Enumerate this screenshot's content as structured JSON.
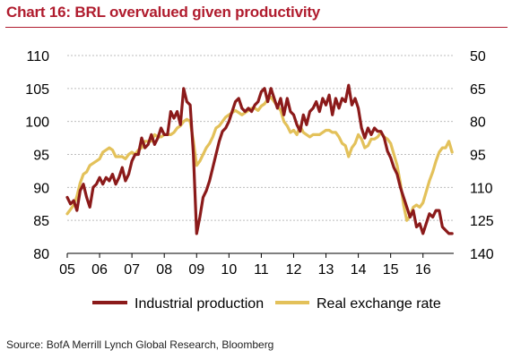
{
  "header": {
    "title": "Chart 16: BRL overvalued given productivity"
  },
  "footer": {
    "source": "Source: BofA Merrill Lynch Global Research, Bloomberg"
  },
  "colors": {
    "title": "#b01c2e",
    "industrial": "#8b1a1a",
    "reer": "#e3c15a",
    "grid": "#bdbdbd"
  },
  "chart_data": {
    "type": "line",
    "title": "Chart 16: BRL overvalued given productivity",
    "xlabel": "",
    "ylabel_left": "",
    "ylabel_right": "",
    "x_ticks": [
      "05",
      "06",
      "07",
      "08",
      "09",
      "10",
      "11",
      "12",
      "13",
      "14",
      "15",
      "16"
    ],
    "x_tick_values": [
      2005,
      2006,
      2007,
      2008,
      2009,
      2010,
      2011,
      2012,
      2013,
      2014,
      2015,
      2016
    ],
    "xlim": [
      2005,
      2016.95
    ],
    "ylim_left": [
      80,
      110
    ],
    "yticks_left": [
      80,
      85,
      90,
      95,
      100,
      105,
      110
    ],
    "ylim_right": [
      140,
      50
    ],
    "yticks_right": [
      50,
      65,
      80,
      95,
      110,
      125,
      140
    ],
    "right_axis_inverted": true,
    "grid": "horizontal dashed",
    "legend_position": "bottom",
    "series": [
      {
        "name": "Industrial production",
        "axis": "left",
        "color": "#8b1a1a",
        "x": [
          2005.0,
          2005.1,
          2005.2,
          2005.3,
          2005.4,
          2005.5,
          2005.6,
          2005.7,
          2005.8,
          2005.9,
          2006.0,
          2006.1,
          2006.2,
          2006.3,
          2006.4,
          2006.5,
          2006.6,
          2006.7,
          2006.8,
          2006.9,
          2007.0,
          2007.1,
          2007.2,
          2007.3,
          2007.4,
          2007.5,
          2007.6,
          2007.7,
          2007.8,
          2007.9,
          2008.0,
          2008.1,
          2008.2,
          2008.3,
          2008.4,
          2008.5,
          2008.6,
          2008.7,
          2008.8,
          2008.9,
          2009.0,
          2009.1,
          2009.2,
          2009.3,
          2009.4,
          2009.5,
          2009.6,
          2009.7,
          2009.8,
          2009.9,
          2010.0,
          2010.1,
          2010.2,
          2010.3,
          2010.4,
          2010.5,
          2010.6,
          2010.7,
          2010.8,
          2010.9,
          2011.0,
          2011.1,
          2011.2,
          2011.3,
          2011.4,
          2011.5,
          2011.6,
          2011.7,
          2011.8,
          2011.9,
          2012.0,
          2012.1,
          2012.2,
          2012.3,
          2012.4,
          2012.5,
          2012.6,
          2012.7,
          2012.8,
          2012.9,
          2013.0,
          2013.1,
          2013.2,
          2013.3,
          2013.4,
          2013.5,
          2013.6,
          2013.7,
          2013.8,
          2013.9,
          2014.0,
          2014.1,
          2014.2,
          2014.3,
          2014.4,
          2014.5,
          2014.6,
          2014.7,
          2014.8,
          2014.9,
          2015.0,
          2015.1,
          2015.2,
          2015.3,
          2015.4,
          2015.5,
          2015.6,
          2015.7,
          2015.8,
          2015.9,
          2016.0,
          2016.1,
          2016.2,
          2016.3,
          2016.4,
          2016.5,
          2016.6,
          2016.7,
          2016.8,
          2016.9
        ],
        "values": [
          88.5,
          87.5,
          88.0,
          86.5,
          89.5,
          90.5,
          88.5,
          87.0,
          90.0,
          90.5,
          91.5,
          90.5,
          91.5,
          91.0,
          92.0,
          90.5,
          91.5,
          93.0,
          91.0,
          92.0,
          94.0,
          95.0,
          95.0,
          97.5,
          96.0,
          96.5,
          98.0,
          96.5,
          97.5,
          99.0,
          98.0,
          98.0,
          101.5,
          100.5,
          101.5,
          99.5,
          105.0,
          103.0,
          102.5,
          95.0,
          83.0,
          85.5,
          88.5,
          89.5,
          91.0,
          93.0,
          95.0,
          97.0,
          98.5,
          99.0,
          100.0,
          101.5,
          103.0,
          103.5,
          102.0,
          101.5,
          102.0,
          101.5,
          102.5,
          103.0,
          104.5,
          105.0,
          103.0,
          105.0,
          103.5,
          102.0,
          103.5,
          101.0,
          103.5,
          101.5,
          101.0,
          99.5,
          98.5,
          101.0,
          99.5,
          101.5,
          102.0,
          103.0,
          101.5,
          103.5,
          102.5,
          104.0,
          101.0,
          103.5,
          102.0,
          103.5,
          103.0,
          105.5,
          102.5,
          103.5,
          102.0,
          99.0,
          97.5,
          99.0,
          98.0,
          99.0,
          98.5,
          98.5,
          97.5,
          95.5,
          94.5,
          93.0,
          92.0,
          90.0,
          88.5,
          87.0,
          85.5,
          86.5,
          84.0,
          84.5,
          83.0,
          84.5,
          86.0,
          85.5,
          86.5,
          86.5,
          84.0,
          83.5,
          83.0,
          83.0
        ]
      },
      {
        "name": "Real exchange rate",
        "axis": "right",
        "color": "#e3c15a",
        "x": [
          2005.0,
          2005.1,
          2005.2,
          2005.3,
          2005.4,
          2005.5,
          2005.6,
          2005.7,
          2005.8,
          2005.9,
          2006.0,
          2006.1,
          2006.2,
          2006.3,
          2006.4,
          2006.5,
          2006.6,
          2006.7,
          2006.8,
          2006.9,
          2007.0,
          2007.1,
          2007.2,
          2007.3,
          2007.4,
          2007.5,
          2007.6,
          2007.7,
          2007.8,
          2007.9,
          2008.0,
          2008.1,
          2008.2,
          2008.3,
          2008.4,
          2008.5,
          2008.6,
          2008.7,
          2008.8,
          2008.9,
          2009.0,
          2009.1,
          2009.2,
          2009.3,
          2009.4,
          2009.5,
          2009.6,
          2009.7,
          2009.8,
          2009.9,
          2010.0,
          2010.1,
          2010.2,
          2010.3,
          2010.4,
          2010.5,
          2010.6,
          2010.7,
          2010.8,
          2010.9,
          2011.0,
          2011.1,
          2011.2,
          2011.3,
          2011.4,
          2011.5,
          2011.6,
          2011.7,
          2011.8,
          2011.9,
          2012.0,
          2012.1,
          2012.2,
          2012.3,
          2012.4,
          2012.5,
          2012.6,
          2012.7,
          2012.8,
          2012.9,
          2013.0,
          2013.1,
          2013.2,
          2013.3,
          2013.4,
          2013.5,
          2013.6,
          2013.7,
          2013.8,
          2013.9,
          2014.0,
          2014.1,
          2014.2,
          2014.3,
          2014.4,
          2014.5,
          2014.6,
          2014.7,
          2014.8,
          2014.9,
          2015.0,
          2015.1,
          2015.2,
          2015.3,
          2015.4,
          2015.5,
          2015.6,
          2015.7,
          2015.8,
          2015.9,
          2016.0,
          2016.1,
          2016.2,
          2016.3,
          2016.4,
          2016.5,
          2016.6,
          2016.7,
          2016.8,
          2016.9
        ],
        "values": [
          122,
          120,
          118,
          114,
          108,
          104,
          103,
          100,
          99,
          98,
          97,
          94,
          93,
          92,
          93,
          96,
          96,
          96,
          97,
          95,
          94,
          95,
          93,
          92,
          89,
          89,
          89,
          86,
          87,
          87,
          86,
          86,
          86,
          85,
          83,
          82,
          80,
          79,
          80,
          89,
          100,
          98,
          95,
          92,
          90,
          87,
          83,
          82,
          80,
          78,
          77,
          76,
          75,
          76,
          77,
          76,
          75,
          74,
          74,
          75,
          73,
          72,
          70,
          69,
          71,
          73,
          75,
          80,
          82,
          85,
          84,
          86,
          82,
          85,
          86,
          87,
          86,
          86,
          86,
          85,
          84,
          84,
          85,
          85,
          87,
          90,
          91,
          96,
          92,
          90,
          86,
          88,
          92,
          91,
          88,
          88,
          87,
          85,
          87,
          88,
          90,
          95,
          100,
          108,
          118,
          125,
          123,
          119,
          118,
          119,
          117,
          112,
          107,
          103,
          98,
          94,
          92,
          92,
          89,
          94
        ]
      }
    ]
  }
}
